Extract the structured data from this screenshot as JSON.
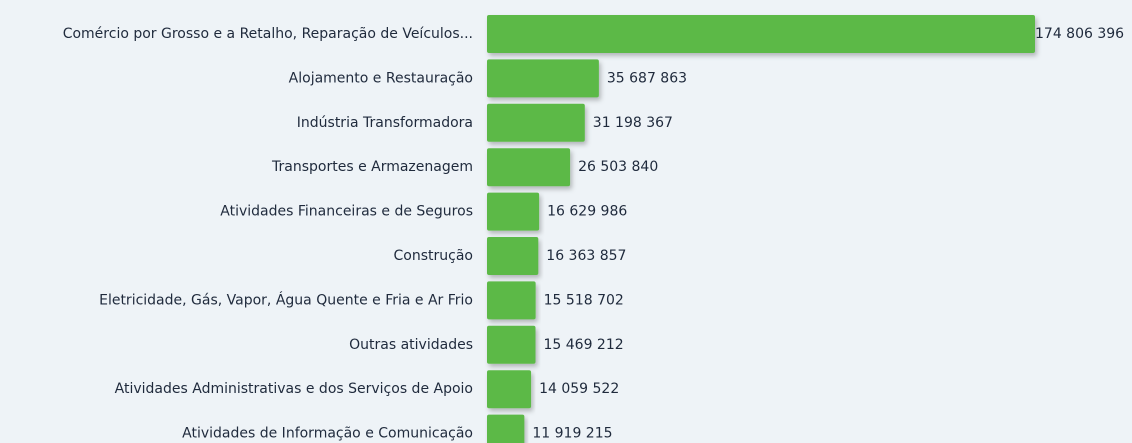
{
  "chart_data": {
    "type": "barh",
    "color": "#5cb947",
    "categories": [
      "Comércio por Grosso e a Retalho, Reparação de Veículos...",
      "Alojamento e Restauração",
      "Indústria Transformadora",
      "Transportes e Armazenagem",
      "Atividades Financeiras e de Seguros",
      "Construção",
      "Eletricidade, Gás, Vapor, Água Quente e Fria e Ar Frio",
      "Outras atividades",
      "Atividades Administrativas e dos Serviços de Apoio",
      "Atividades de Informação e Comunicação"
    ],
    "values": [
      174806396,
      35687863,
      31198367,
      26503840,
      16629986,
      16363857,
      15518702,
      15469212,
      14059522,
      11919215
    ],
    "value_labels": [
      "174 806 396",
      "35 687 863",
      "31 198 367",
      "26 503 840",
      "16 629 986",
      "16 363 857",
      "15 518 702",
      "15 469 212",
      "14 059 522",
      "11 919 215"
    ]
  }
}
